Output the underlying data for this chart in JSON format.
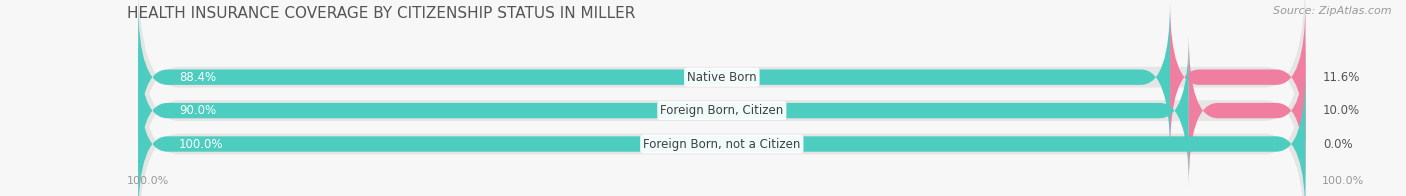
{
  "title": "HEALTH INSURANCE COVERAGE BY CITIZENSHIP STATUS IN MILLER",
  "source": "Source: ZipAtlas.com",
  "categories": [
    "Native Born",
    "Foreign Born, Citizen",
    "Foreign Born, not a Citizen"
  ],
  "with_coverage": [
    88.4,
    90.0,
    100.0
  ],
  "without_coverage": [
    11.6,
    10.0,
    0.0
  ],
  "color_with": "#4dccc0",
  "color_without": "#f07ea0",
  "bar_bg": "#e5e5e5",
  "title_fontsize": 11,
  "source_fontsize": 8,
  "label_fontsize": 8.5,
  "pct_fontsize": 8.5,
  "legend_color_with": "#4dccc0",
  "legend_color_without": "#f07ea0",
  "x_left_label": "100.0%",
  "x_right_label": "100.0%",
  "fig_bg": "#f7f7f7"
}
